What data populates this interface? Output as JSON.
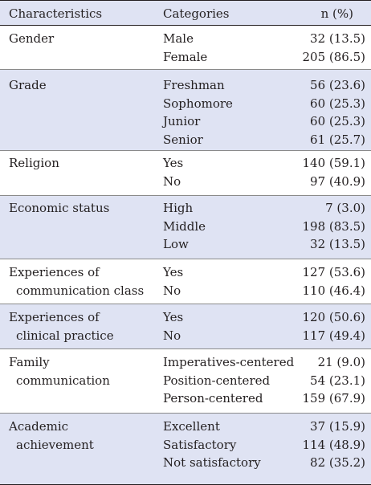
{
  "header": {
    "characteristics": "Characteristics",
    "categories": "Categories",
    "n_pct": "n (%)"
  },
  "groups": [
    {
      "label": [
        "Gender"
      ],
      "categories": [
        "Male",
        "Female"
      ],
      "values": [
        "32 (13.5)",
        "205 (86.5)"
      ]
    },
    {
      "label": [
        "Grade"
      ],
      "categories": [
        "Freshman",
        "Sophomore",
        "Junior",
        "Senior"
      ],
      "values": [
        "56 (23.6)",
        "60 (25.3)",
        "60 (25.3)",
        "61 (25.7)"
      ]
    },
    {
      "label": [
        "Religion"
      ],
      "categories": [
        "Yes",
        "No"
      ],
      "values": [
        "140 (59.1)",
        "97 (40.9)"
      ]
    },
    {
      "label": [
        "Economic status"
      ],
      "categories": [
        "High",
        "Middle",
        "Low"
      ],
      "values": [
        "7 (3.0)",
        "198 (83.5)",
        "32 (13.5)"
      ]
    },
    {
      "label": [
        "Experiences of",
        "communication class"
      ],
      "categories": [
        "Yes",
        "No"
      ],
      "values": [
        "127 (53.6)",
        "110 (46.4)"
      ]
    },
    {
      "label": [
        "Experiences of",
        "clinical practice"
      ],
      "categories": [
        "Yes",
        "No"
      ],
      "values": [
        "120 (50.6)",
        "117 (49.4)"
      ]
    },
    {
      "label": [
        "Family",
        "communication"
      ],
      "categories": [
        "Imperatives-centered",
        "Position-centered",
        "Person-centered"
      ],
      "values": [
        "21 (9.0)",
        "54 (23.1)",
        "159 (67.9)"
      ]
    },
    {
      "label": [
        "Academic",
        "achievement"
      ],
      "categories": [
        "Excellent",
        "Satisfactory",
        "Not satisfactory"
      ],
      "values": [
        "37 (15.9)",
        "114 (48.9)",
        "82 (35.2)"
      ]
    }
  ]
}
